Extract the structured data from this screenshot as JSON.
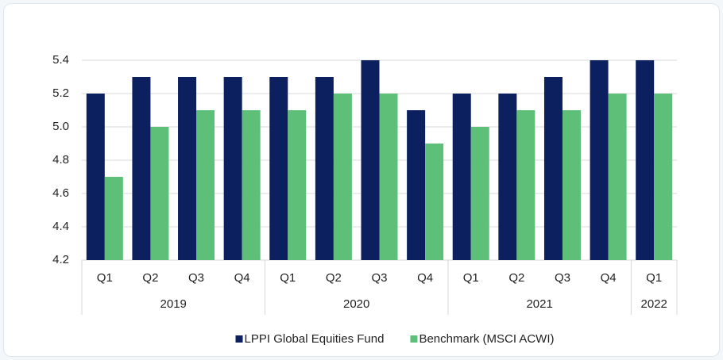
{
  "chart_data": {
    "type": "bar",
    "groups": [
      {
        "name": "2019",
        "categories": [
          "Q1",
          "Q2",
          "Q3",
          "Q4"
        ]
      },
      {
        "name": "2020",
        "categories": [
          "Q1",
          "Q2",
          "Q3",
          "Q4"
        ]
      },
      {
        "name": "2021",
        "categories": [
          "Q1",
          "Q2",
          "Q3",
          "Q4"
        ]
      },
      {
        "name": "2022",
        "categories": [
          "Q1"
        ]
      }
    ],
    "series": [
      {
        "name": "LPPI Global Equities Fund",
        "color": "#0c1f5e",
        "values": [
          5.2,
          5.3,
          5.3,
          5.3,
          5.3,
          5.3,
          5.4,
          5.1,
          5.2,
          5.2,
          5.3,
          5.4,
          5.4
        ]
      },
      {
        "name": "Benchmark (MSCI ACWI)",
        "color": "#5dbf78",
        "values": [
          4.7,
          5.0,
          5.1,
          5.1,
          5.1,
          5.2,
          5.2,
          4.9,
          5.0,
          5.1,
          5.1,
          5.2,
          5.2
        ]
      }
    ],
    "ylim": [
      4.2,
      5.4
    ],
    "yticks": [
      4.2,
      4.4,
      4.6,
      4.8,
      {
        "value": 5,
        "label": "5.0"
      },
      5.2,
      5.4
    ],
    "grid": true,
    "legend": "bottom"
  }
}
